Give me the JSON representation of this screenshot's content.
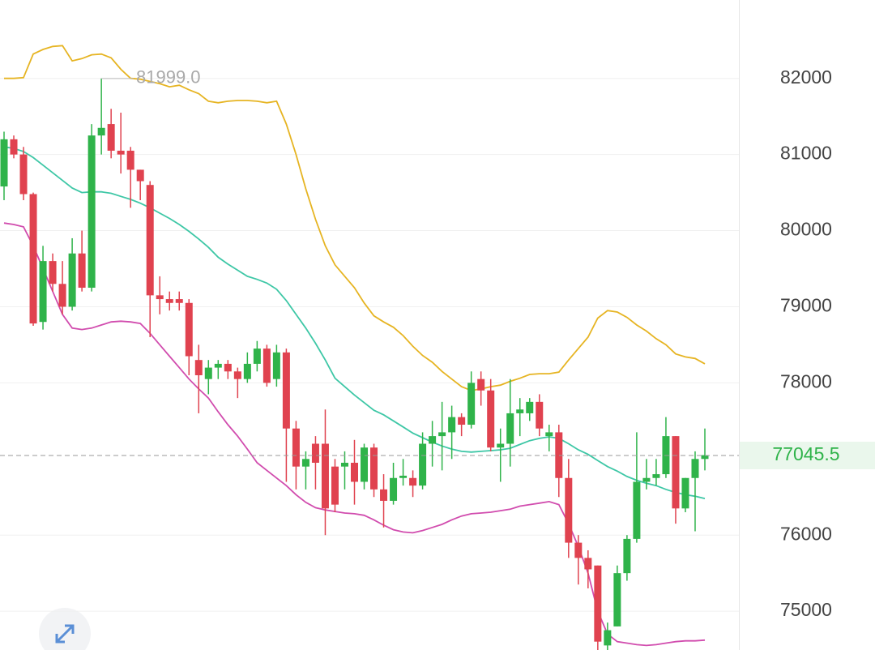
{
  "chart_data": {
    "type": "candlestick",
    "up_color": "#2fb34a",
    "down_color": "#e0424f",
    "open": [
      80580,
      81200,
      81000,
      80480,
      78800,
      79600,
      79300,
      79000,
      79700,
      79250,
      81250,
      81400,
      81050,
      81050,
      80800,
      80600,
      79150,
      79100,
      79100,
      79050,
      78300,
      78050,
      78200,
      78250,
      78150,
      78050,
      78250,
      78450,
      78050,
      78400,
      77400,
      76900,
      77200,
      77200,
      76900,
      76900,
      76950,
      76700,
      77150,
      76600,
      76450,
      76750,
      76750,
      76650,
      77200,
      77300,
      77350,
      77550,
      77450,
      78050,
      77900,
      77150,
      77200,
      77600,
      77600,
      77750,
      77300,
      77350,
      76750,
      75900,
      75700,
      75600,
      74550,
      74800,
      75500,
      75950,
      76700,
      76750,
      76800,
      77300,
      76350,
      76750,
      77000
    ],
    "high": [
      81300,
      81250,
      81100,
      80500,
      79800,
      79700,
      79600,
      79900,
      80000,
      81400,
      81999,
      81600,
      81550,
      81100,
      80800,
      80650,
      79400,
      79200,
      79200,
      79100,
      78500,
      78300,
      78300,
      78300,
      78200,
      78400,
      78550,
      78500,
      78500,
      78450,
      77500,
      77100,
      77300,
      77650,
      77000,
      77100,
      77250,
      77200,
      77200,
      76800,
      76950,
      77000,
      76850,
      77350,
      77500,
      77750,
      77700,
      77600,
      78150,
      78150,
      78050,
      77400,
      78050,
      77800,
      77800,
      77850,
      77450,
      77450,
      77000,
      76000,
      75800,
      75600,
      74850,
      75600,
      76000,
      77350,
      77000,
      77000,
      77550,
      77300,
      76750,
      77100,
      77400
    ],
    "low": [
      80400,
      80950,
      80400,
      78750,
      78700,
      79200,
      78900,
      78950,
      79200,
      79200,
      81000,
      80950,
      80750,
      80300,
      80400,
      78600,
      78900,
      78950,
      78950,
      78100,
      77600,
      77850,
      78050,
      78050,
      77800,
      78000,
      78150,
      77950,
      77950,
      76700,
      76600,
      76600,
      76600,
      76000,
      76300,
      76600,
      76400,
      76600,
      76500,
      76100,
      76400,
      76650,
      76500,
      76600,
      76900,
      76850,
      77000,
      77300,
      77400,
      77700,
      77100,
      76700,
      76900,
      77300,
      77500,
      77300,
      77100,
      76500,
      75700,
      75350,
      75300,
      74400,
      74450,
      74800,
      75400,
      75900,
      76600,
      76650,
      76750,
      76150,
      76300,
      76050,
      76850
    ],
    "close": [
      81200,
      81000,
      80480,
      78780,
      79600,
      79300,
      79000,
      79700,
      79250,
      81250,
      81350,
      81050,
      81000,
      80800,
      80650,
      79150,
      79100,
      79050,
      79050,
      78350,
      78100,
      78200,
      78250,
      78150,
      78050,
      78250,
      78450,
      78000,
      78400,
      77400,
      76900,
      77000,
      76950,
      76350,
      76400,
      76950,
      76700,
      77150,
      76600,
      76450,
      76750,
      76780,
      76650,
      77200,
      77300,
      77350,
      77550,
      77450,
      78000,
      77900,
      77150,
      77200,
      77600,
      77650,
      77750,
      77400,
      77350,
      76750,
      75900,
      75700,
      75550,
      74600,
      74750,
      75500,
      75950,
      76700,
      76750,
      76800,
      77300,
      76350,
      76750,
      77000,
      77050
    ],
    "lines": [
      {
        "color": "#e6b422",
        "values": [
          82000,
          82000,
          82010,
          82320,
          82380,
          82420,
          82430,
          82230,
          82260,
          82310,
          82320,
          82270,
          82120,
          82000,
          81990,
          81960,
          81930,
          81890,
          81910,
          81850,
          81800,
          81700,
          81680,
          81700,
          81710,
          81710,
          81700,
          81680,
          81700,
          81400,
          81000,
          80550,
          80150,
          79800,
          79550,
          79400,
          79250,
          79050,
          78880,
          78800,
          78730,
          78620,
          78480,
          78360,
          78270,
          78150,
          78050,
          77950,
          77900,
          77920,
          77950,
          77970,
          78020,
          78060,
          78110,
          78120,
          78120,
          78140,
          78300,
          78450,
          78600,
          78850,
          78950,
          78930,
          78860,
          78760,
          78680,
          78580,
          78500,
          78380,
          78340,
          78320,
          78250
        ]
      },
      {
        "color": "#3ec7a6",
        "values": [
          81100,
          81080,
          81040,
          80960,
          80860,
          80760,
          80660,
          80560,
          80500,
          80510,
          80510,
          80490,
          80450,
          80410,
          80360,
          80300,
          80230,
          80160,
          80080,
          79990,
          79890,
          79780,
          79650,
          79560,
          79480,
          79400,
          79360,
          79310,
          79230,
          79080,
          78900,
          78720,
          78520,
          78300,
          78060,
          77950,
          77840,
          77740,
          77640,
          77580,
          77500,
          77420,
          77340,
          77280,
          77220,
          77170,
          77130,
          77100,
          77090,
          77100,
          77110,
          77120,
          77140,
          77190,
          77240,
          77270,
          77290,
          77270,
          77200,
          77120,
          77060,
          76980,
          76900,
          76840,
          76770,
          76720,
          76680,
          76650,
          76600,
          76560,
          76530,
          76510,
          76480
        ]
      },
      {
        "color": "#d14cae",
        "values": [
          80100,
          80080,
          80050,
          79800,
          79500,
          79200,
          78900,
          78720,
          78700,
          78720,
          78760,
          78800,
          78810,
          78800,
          78780,
          78650,
          78500,
          78350,
          78200,
          78050,
          77920,
          77800,
          77620,
          77450,
          77300,
          77130,
          76950,
          76850,
          76750,
          76650,
          76530,
          76430,
          76360,
          76330,
          76310,
          76290,
          76280,
          76260,
          76200,
          76130,
          76070,
          76040,
          76030,
          76060,
          76100,
          76140,
          76200,
          76250,
          76280,
          76290,
          76300,
          76320,
          76340,
          76380,
          76400,
          76420,
          76440,
          76400,
          76150,
          75850,
          75500,
          75000,
          74700,
          74600,
          74580,
          74560,
          74550,
          74560,
          74580,
          74600,
          74610,
          74610,
          74620
        ]
      }
    ],
    "ylim": [
      74490,
      83030
    ],
    "yticks": [
      75000,
      76000,
      78000,
      79000,
      80000,
      81000,
      82000
    ],
    "grid": true,
    "max_label": {
      "value": 81999,
      "label": "81999.0"
    },
    "last_price": 77045.5,
    "last_price_color": "#2fb34a"
  }
}
